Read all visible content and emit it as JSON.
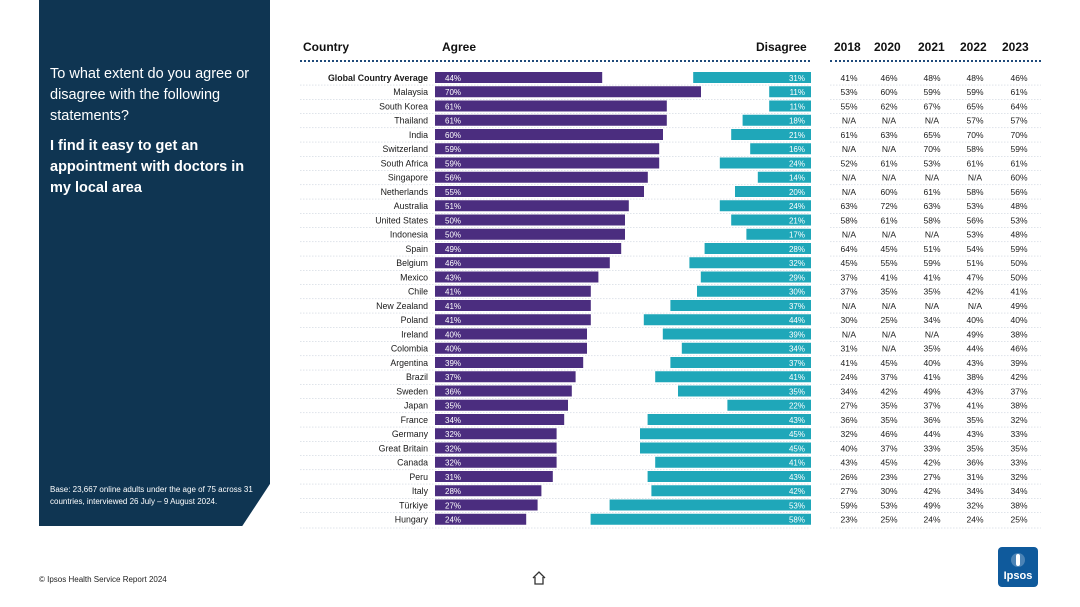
{
  "panel": {
    "question": "To what extent do you agree or disagree with the following statements?",
    "statement": "I find it easy to get an appointment with doctors in my local area",
    "base_note": "Base: 23,667 online adults under the age of 75 across 31 countries, interviewed 26 July – 9 August 2024."
  },
  "footer": {
    "source": "© Ipsos Health Service Report 2024",
    "logo_text": "Ipsos"
  },
  "icons": {
    "home": "home-icon",
    "logo": "ipsos-logo"
  },
  "colors": {
    "agree": "#4b2d7f",
    "disagree": "#1fa7b9",
    "panel": "#0f3552",
    "line": "#1f4a7a"
  },
  "chart_data": {
    "type": "bar",
    "headers": {
      "country": "Country",
      "agree": "Agree",
      "disagree": "Disagree",
      "years": [
        "2018",
        "2020",
        "2021",
        "2022",
        "2023"
      ]
    },
    "rows": [
      {
        "country": "Global Country Average",
        "agree": 44,
        "disagree": 31,
        "history": [
          "41%",
          "46%",
          "48%",
          "48%",
          "46%"
        ],
        "bold": true
      },
      {
        "country": "Malaysia",
        "agree": 70,
        "disagree": 11,
        "history": [
          "53%",
          "60%",
          "59%",
          "59%",
          "61%"
        ]
      },
      {
        "country": "South Korea",
        "agree": 61,
        "disagree": 11,
        "history": [
          "55%",
          "62%",
          "67%",
          "65%",
          "64%"
        ]
      },
      {
        "country": "Thailand",
        "agree": 61,
        "disagree": 18,
        "history": [
          "N/A",
          "N/A",
          "N/A",
          "57%",
          "57%"
        ]
      },
      {
        "country": "India",
        "agree": 60,
        "disagree": 21,
        "history": [
          "61%",
          "63%",
          "65%",
          "70%",
          "70%"
        ]
      },
      {
        "country": "Switzerland",
        "agree": 59,
        "disagree": 16,
        "history": [
          "N/A",
          "N/A",
          "70%",
          "58%",
          "59%"
        ]
      },
      {
        "country": "South Africa",
        "agree": 59,
        "disagree": 24,
        "history": [
          "52%",
          "61%",
          "53%",
          "61%",
          "61%"
        ]
      },
      {
        "country": "Singapore",
        "agree": 56,
        "disagree": 14,
        "history": [
          "N/A",
          "N/A",
          "N/A",
          "N/A",
          "60%"
        ]
      },
      {
        "country": "Netherlands",
        "agree": 55,
        "disagree": 20,
        "history": [
          "N/A",
          "60%",
          "61%",
          "58%",
          "56%"
        ]
      },
      {
        "country": "Australia",
        "agree": 51,
        "disagree": 24,
        "history": [
          "63%",
          "72%",
          "63%",
          "53%",
          "48%"
        ]
      },
      {
        "country": "United States",
        "agree": 50,
        "disagree": 21,
        "history": [
          "58%",
          "61%",
          "58%",
          "56%",
          "53%"
        ]
      },
      {
        "country": "Indonesia",
        "agree": 50,
        "disagree": 17,
        "history": [
          "N/A",
          "N/A",
          "N/A",
          "53%",
          "48%"
        ]
      },
      {
        "country": "Spain",
        "agree": 49,
        "disagree": 28,
        "history": [
          "64%",
          "45%",
          "51%",
          "54%",
          "59%"
        ]
      },
      {
        "country": "Belgium",
        "agree": 46,
        "disagree": 32,
        "history": [
          "45%",
          "55%",
          "59%",
          "51%",
          "50%"
        ]
      },
      {
        "country": "Mexico",
        "agree": 43,
        "disagree": 29,
        "history": [
          "37%",
          "41%",
          "41%",
          "47%",
          "50%"
        ]
      },
      {
        "country": "Chile",
        "agree": 41,
        "disagree": 30,
        "history": [
          "37%",
          "35%",
          "35%",
          "42%",
          "41%"
        ]
      },
      {
        "country": "New Zealand",
        "agree": 41,
        "disagree": 37,
        "history": [
          "N/A",
          "N/A",
          "N/A",
          "N/A",
          "49%"
        ]
      },
      {
        "country": "Poland",
        "agree": 41,
        "disagree": 44,
        "history": [
          "30%",
          "25%",
          "34%",
          "40%",
          "40%"
        ]
      },
      {
        "country": "Ireland",
        "agree": 40,
        "disagree": 39,
        "history": [
          "N/A",
          "N/A",
          "N/A",
          "49%",
          "38%"
        ]
      },
      {
        "country": "Colombia",
        "agree": 40,
        "disagree": 34,
        "history": [
          "31%",
          "N/A",
          "35%",
          "44%",
          "46%"
        ]
      },
      {
        "country": "Argentina",
        "agree": 39,
        "disagree": 37,
        "history": [
          "41%",
          "45%",
          "40%",
          "43%",
          "39%"
        ]
      },
      {
        "country": "Brazil",
        "agree": 37,
        "disagree": 41,
        "history": [
          "24%",
          "37%",
          "41%",
          "38%",
          "42%"
        ]
      },
      {
        "country": "Sweden",
        "agree": 36,
        "disagree": 35,
        "history": [
          "34%",
          "42%",
          "49%",
          "43%",
          "37%"
        ]
      },
      {
        "country": "Japan",
        "agree": 35,
        "disagree": 22,
        "history": [
          "27%",
          "35%",
          "37%",
          "41%",
          "38%"
        ]
      },
      {
        "country": "France",
        "agree": 34,
        "disagree": 43,
        "history": [
          "36%",
          "35%",
          "36%",
          "35%",
          "32%"
        ]
      },
      {
        "country": "Germany",
        "agree": 32,
        "disagree": 45,
        "history": [
          "32%",
          "46%",
          "44%",
          "43%",
          "33%"
        ]
      },
      {
        "country": "Great Britain",
        "agree": 32,
        "disagree": 45,
        "history": [
          "40%",
          "37%",
          "33%",
          "35%",
          "35%"
        ]
      },
      {
        "country": "Canada",
        "agree": 32,
        "disagree": 41,
        "history": [
          "43%",
          "45%",
          "42%",
          "36%",
          "33%"
        ]
      },
      {
        "country": "Peru",
        "agree": 31,
        "disagree": 43,
        "history": [
          "26%",
          "23%",
          "27%",
          "31%",
          "32%"
        ]
      },
      {
        "country": "Italy",
        "agree": 28,
        "disagree": 42,
        "history": [
          "27%",
          "30%",
          "42%",
          "34%",
          "34%"
        ]
      },
      {
        "country": "Türkiye",
        "agree": 27,
        "disagree": 53,
        "history": [
          "59%",
          "53%",
          "49%",
          "32%",
          "38%"
        ]
      },
      {
        "country": "Hungary",
        "agree": 24,
        "disagree": 58,
        "history": [
          "23%",
          "25%",
          "24%",
          "24%",
          "25%"
        ]
      }
    ]
  }
}
